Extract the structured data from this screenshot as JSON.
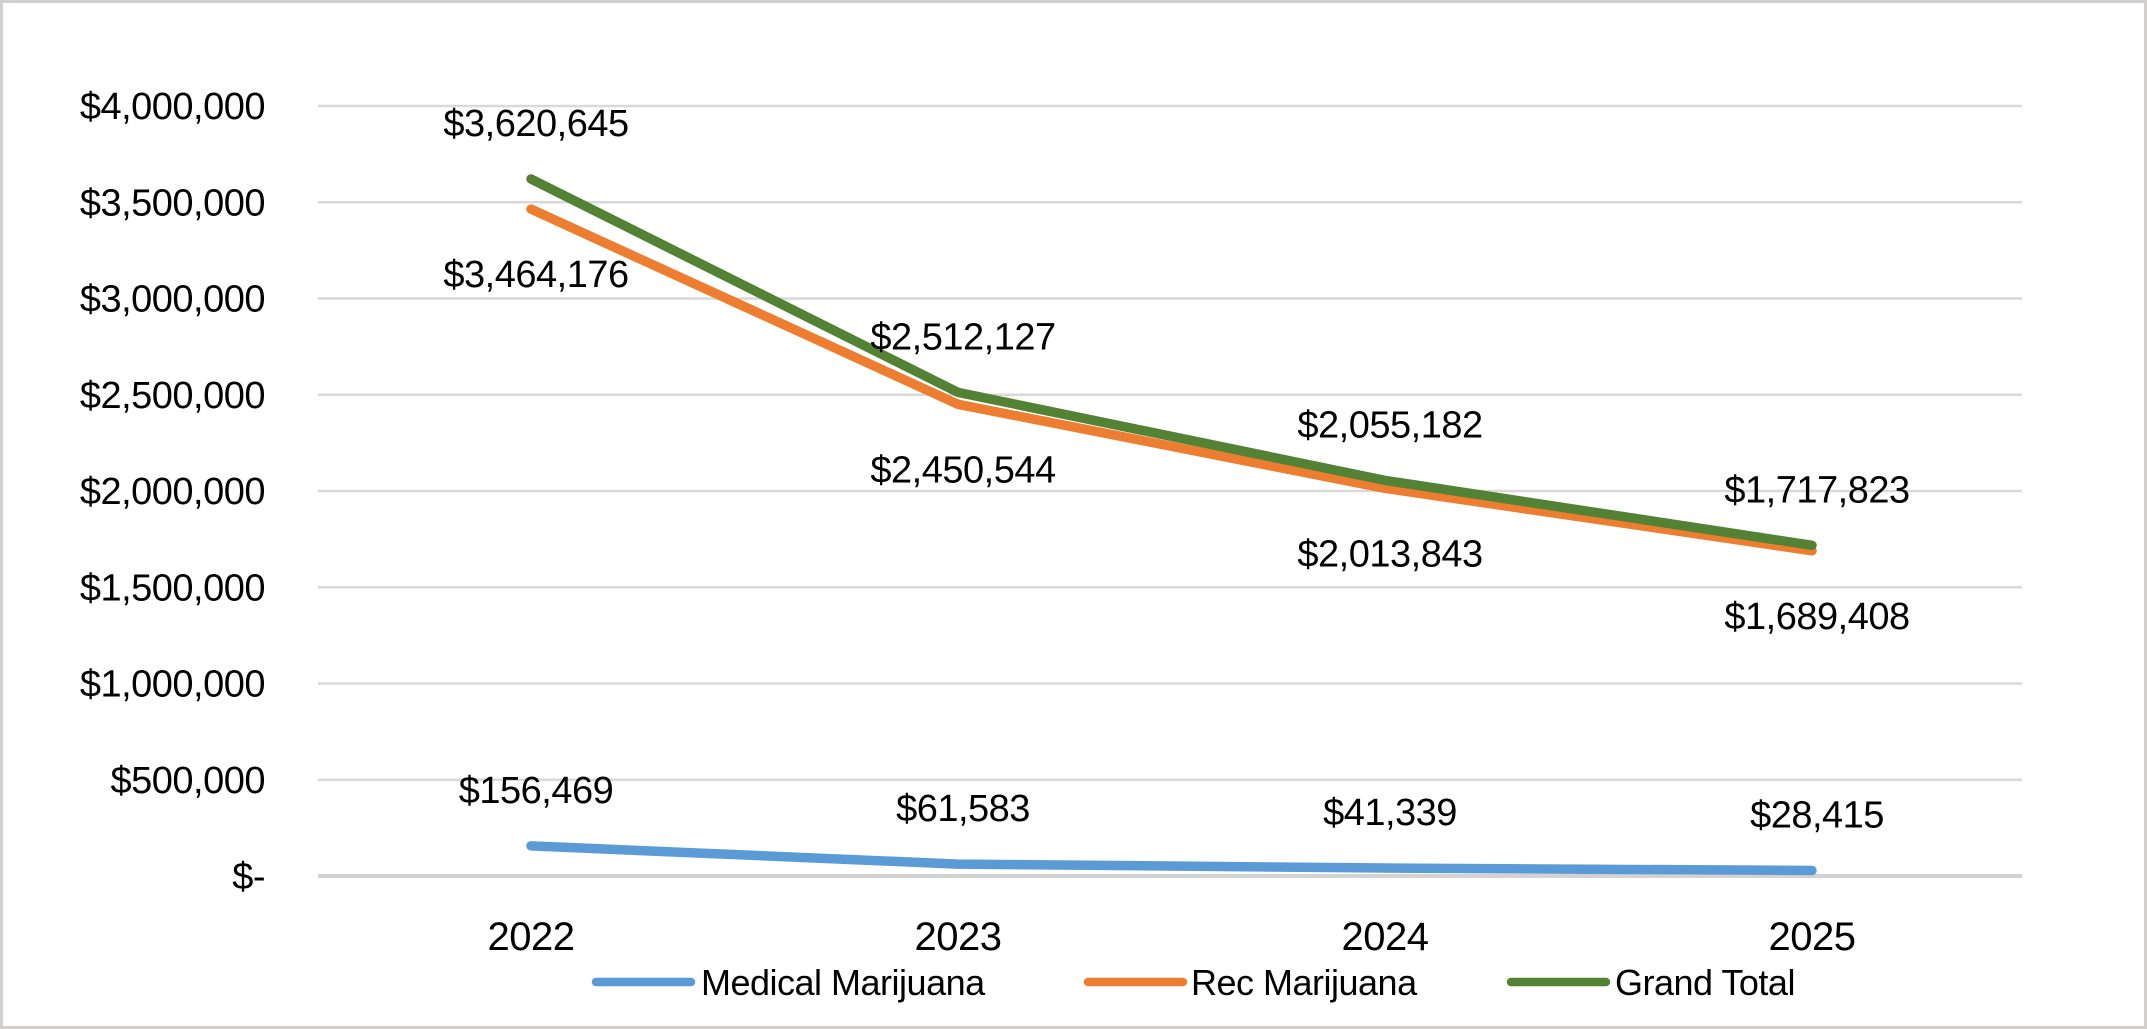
{
  "frame": {
    "background": "#ffffff",
    "border_color": "#d2cfcf"
  },
  "chart_data": {
    "type": "line",
    "title": "",
    "categories": [
      "2022",
      "2023",
      "2024",
      "2025"
    ],
    "series": [
      {
        "name": "Medical Marijuana",
        "color": "#5B9BD5",
        "values": [
          156469,
          61583,
          41339,
          28415
        ],
        "data_labels": [
          "$156,469",
          "$61,583",
          "$41,339",
          "$28,415"
        ],
        "label_side": "above"
      },
      {
        "name": "Rec Marijuana",
        "color": "#ED7D31",
        "values": [
          3464176,
          2450544,
          2013843,
          1689408
        ],
        "data_labels": [
          "$3,464,176",
          "$2,450,544",
          "$2,013,843",
          "$1,689,408"
        ],
        "label_side": "below"
      },
      {
        "name": "Grand Total",
        "color": "#548235",
        "values": [
          3620645,
          2512127,
          2055182,
          1717823
        ],
        "data_labels": [
          "$3,620,645",
          "$2,512,127",
          "$2,055,182",
          "$1,717,823"
        ],
        "label_side": "above"
      }
    ],
    "y_axis": {
      "min": 0,
      "max": 4000000,
      "step": 500000,
      "tick_labels": [
        "$-",
        "$500,000",
        "$1,000,000",
        "$1,500,000",
        "$2,000,000",
        "$2,500,000",
        "$3,000,000",
        "$3,500,000",
        "$4,000,000"
      ]
    },
    "x_axis": {
      "tick_labels": [
        "2022",
        "2023",
        "2024",
        "2025"
      ]
    },
    "legend": {
      "position": "bottom",
      "entries": [
        "Medical Marijuana",
        "Rec Marijuana",
        "Grand Total"
      ]
    },
    "grid": true,
    "gridline_color": "#D9D9D9",
    "axis_line_color": "#D3D3D3",
    "text_color": "#000000"
  }
}
